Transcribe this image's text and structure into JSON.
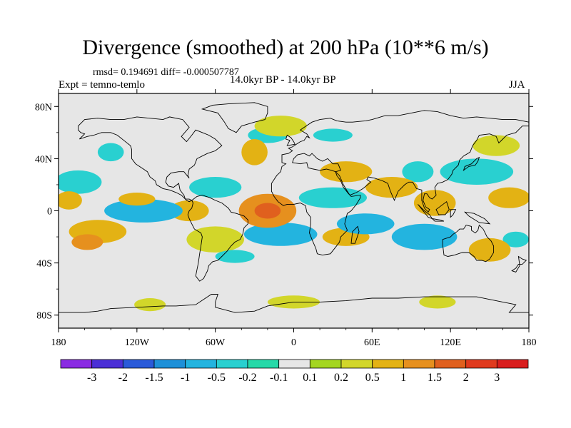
{
  "title": "Divergence (smoothed) at 200 hPa (10**6 m/s)",
  "stats": "rmsd= 0.194691 diff= -0.000507787",
  "experiment": "Expt = temno-temlo",
  "period": "14.0kyr BP - 14.0kyr BP",
  "season": "JJA",
  "lat_labels": [
    "80N",
    "40N",
    "0",
    "40S",
    "80S"
  ],
  "lon_labels": [
    "180",
    "120W",
    "60W",
    "0",
    "60E",
    "120E",
    "180"
  ],
  "colorbar": {
    "colors": [
      "#8a2be2",
      "#4b2fd6",
      "#2a5ad9",
      "#1e90d8",
      "#23b4df",
      "#29d0d0",
      "#26d9a8",
      "#e6e6e6",
      "#a4d620",
      "#d2d62a",
      "#e3b214",
      "#e6901e",
      "#e0601e",
      "#e03a1e",
      "#d91e1e"
    ],
    "labels": [
      "-3",
      "-2",
      "-1.5",
      "-1",
      "-0.5",
      "-0.2",
      "-0.1",
      "0.1",
      "0.2",
      "0.5",
      "1",
      "1.5",
      "2",
      "3"
    ]
  },
  "chart_data": {
    "type": "heatmap",
    "title": "Divergence (smoothed) at 200 hPa (10**6 m/s)",
    "variable": "Divergence (smoothed) at 200 hPa",
    "units": "10**6 m/s",
    "xlabel": "",
    "ylabel": "",
    "xlim": [
      -180,
      180
    ],
    "ylim": [
      -90,
      90
    ],
    "x_ticks": [
      -180,
      -120,
      -60,
      0,
      60,
      120,
      180
    ],
    "y_ticks": [
      80,
      40,
      0,
      -40,
      -80
    ],
    "levels": [
      -3,
      -2,
      -1.5,
      -1,
      -0.5,
      -0.2,
      -0.1,
      0.1,
      0.2,
      0.5,
      1,
      1.5,
      2,
      3
    ],
    "background_value": 0,
    "features": [
      {
        "lon": -20,
        "lat": 0,
        "rx": 22,
        "ry": 13,
        "v": 1.0
      },
      {
        "lon": -20,
        "lat": 0,
        "rx": 10,
        "ry": 6,
        "v": 1.5
      },
      {
        "lon": -120,
        "lat": 9,
        "rx": 14,
        "ry": 5,
        "v": 0.8
      },
      {
        "lon": -172,
        "lat": 8,
        "rx": 10,
        "ry": 7,
        "v": 0.8
      },
      {
        "lon": -80,
        "lat": 0,
        "rx": 15,
        "ry": 8,
        "v": 0.6
      },
      {
        "lon": -150,
        "lat": -16,
        "rx": 22,
        "ry": 9,
        "v": 0.6
      },
      {
        "lon": -158,
        "lat": -24,
        "rx": 12,
        "ry": 6,
        "v": 1.0
      },
      {
        "lon": -60,
        "lat": -22,
        "rx": 22,
        "ry": 10,
        "v": 0.4
      },
      {
        "lon": 40,
        "lat": 30,
        "rx": 20,
        "ry": 8,
        "v": 0.6
      },
      {
        "lon": 75,
        "lat": 18,
        "rx": 20,
        "ry": 8,
        "v": 0.5
      },
      {
        "lon": 108,
        "lat": 6,
        "rx": 16,
        "ry": 10,
        "v": 0.9
      },
      {
        "lon": 165,
        "lat": 10,
        "rx": 16,
        "ry": 8,
        "v": 0.6
      },
      {
        "lon": 150,
        "lat": -30,
        "rx": 16,
        "ry": 9,
        "v": 0.5
      },
      {
        "lon": 40,
        "lat": -20,
        "rx": 18,
        "ry": 7,
        "v": 0.5
      },
      {
        "lon": -10,
        "lat": 65,
        "rx": 20,
        "ry": 8,
        "v": 0.35
      },
      {
        "lon": -30,
        "lat": 45,
        "rx": 10,
        "ry": 10,
        "v": 0.6
      },
      {
        "lon": 155,
        "lat": 50,
        "rx": 18,
        "ry": 8,
        "v": 0.35
      },
      {
        "lon": 110,
        "lat": -70,
        "rx": 14,
        "ry": 5,
        "v": 0.4
      },
      {
        "lon": 0,
        "lat": -70,
        "rx": 20,
        "ry": 5,
        "v": 0.35
      },
      {
        "lon": -110,
        "lat": -72,
        "rx": 12,
        "ry": 5,
        "v": 0.3
      },
      {
        "lon": -115,
        "lat": 0,
        "rx": 30,
        "ry": 9,
        "v": -0.6
      },
      {
        "lon": -165,
        "lat": 22,
        "rx": 18,
        "ry": 9,
        "v": -0.4
      },
      {
        "lon": -60,
        "lat": 18,
        "rx": 20,
        "ry": 8,
        "v": -0.5
      },
      {
        "lon": -10,
        "lat": -18,
        "rx": 28,
        "ry": 9,
        "v": -0.8
      },
      {
        "lon": -45,
        "lat": -35,
        "rx": 15,
        "ry": 5,
        "v": -0.4
      },
      {
        "lon": 30,
        "lat": 10,
        "rx": 26,
        "ry": 8,
        "v": -0.4
      },
      {
        "lon": 55,
        "lat": -10,
        "rx": 22,
        "ry": 8,
        "v": -0.6
      },
      {
        "lon": 100,
        "lat": -20,
        "rx": 25,
        "ry": 10,
        "v": -0.6
      },
      {
        "lon": 140,
        "lat": 30,
        "rx": 28,
        "ry": 10,
        "v": -0.5
      },
      {
        "lon": 95,
        "lat": 30,
        "rx": 12,
        "ry": 8,
        "v": -0.4
      },
      {
        "lon": -140,
        "lat": 45,
        "rx": 10,
        "ry": 7,
        "v": -0.3
      },
      {
        "lon": -20,
        "lat": 58,
        "rx": 15,
        "ry": 6,
        "v": -0.3
      },
      {
        "lon": 30,
        "lat": 58,
        "rx": 15,
        "ry": 5,
        "v": -0.3
      },
      {
        "lon": 170,
        "lat": -22,
        "rx": 10,
        "ry": 6,
        "v": -0.4
      }
    ]
  }
}
